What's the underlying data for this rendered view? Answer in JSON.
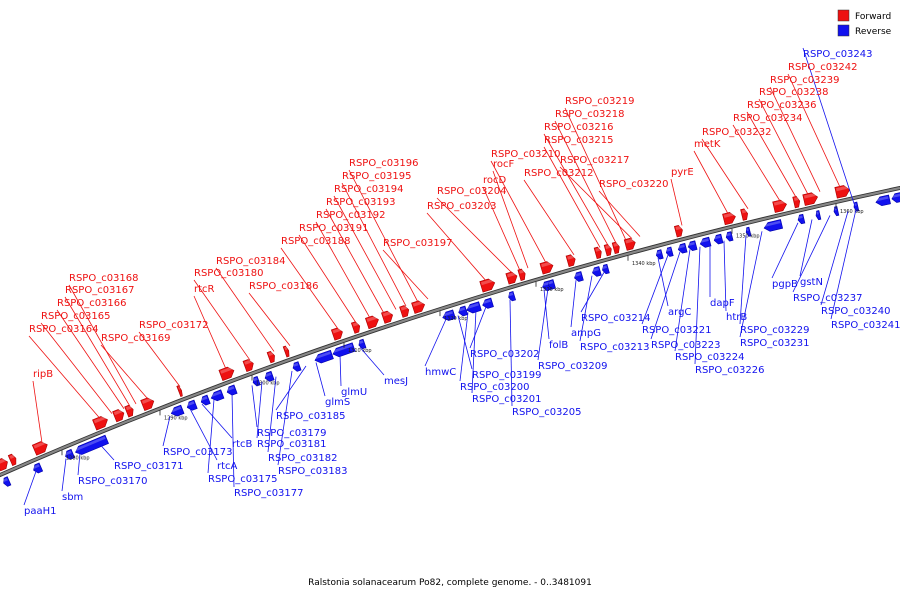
{
  "caption": "Ralstonia solanacearum Po82, complete genome. - 0..3481091",
  "legend": [
    {
      "label": "Forward",
      "color": "#ee1111"
    },
    {
      "label": "Reverse",
      "color": "#1111ee"
    }
  ],
  "colors": {
    "forward": "#ee1111",
    "reverse": "#1111ee",
    "backbone": "#888888"
  },
  "ticks": [
    "1280 kbp",
    "1290 kbp",
    "1300 kbp",
    "1310 kbp",
    "1320 kbp",
    "1330 kbp",
    "1340 kbp",
    "1350 kbp",
    "1360 kbp"
  ],
  "forward_labels": [
    "ripB",
    "RSPO_c03164",
    "RSPO_c03165",
    "RSPO_c03166",
    "RSPO_c03167",
    "RSPO_c03168",
    "RSPO_c03169",
    "RSPO_c03172",
    "rtcR",
    "RSPO_c03180",
    "RSPO_c03184",
    "RSPO_c03186",
    "RSPO_c03188",
    "RSPO_c03191",
    "RSPO_c03192",
    "RSPO_c03193",
    "RSPO_c03194",
    "RSPO_c03195",
    "RSPO_c03196",
    "RSPO_c03197",
    "RSPO_c03203",
    "RSPO_c03204",
    "rocD",
    "rocF",
    "RSPO_c03210",
    "RSPO_c03212",
    "RSPO_c03215",
    "RSPO_c03216",
    "RSPO_c03218",
    "RSPO_c03219",
    "RSPO_c03217",
    "RSPO_c03220",
    "pyrE",
    "metK",
    "RSPO_c03232",
    "RSPO_c03234",
    "RSPO_c03236",
    "RSPO_c03238",
    "RSPO_c03239",
    "RSPO_c03242"
  ],
  "reverse_labels": [
    "paaH1",
    "sbm",
    "RSPO_c03170",
    "RSPO_c03171",
    "RSPO_c03173",
    "rtcA",
    "rtcB",
    "RSPO_c03175",
    "RSPO_c03177",
    "RSPO_c03179",
    "RSPO_c03181",
    "RSPO_c03182",
    "RSPO_c03183",
    "RSPO_c03185",
    "glmS",
    "glmU",
    "mesJ",
    "hmwC",
    "RSPO_c03199",
    "RSPO_c03200",
    "RSPO_c03201",
    "RSPO_c03202",
    "RSPO_c03205",
    "folB",
    "RSPO_c03209",
    "ampG",
    "RSPO_c03213",
    "RSPO_c03214",
    "argC",
    "RSPO_c03221",
    "RSPO_c03223",
    "RSPO_c03224",
    "RSPO_c03226",
    "dapF",
    "htrB",
    "RSPO_c03229",
    "RSPO_c03231",
    "pgpB",
    "gstN",
    "RSPO_c03237",
    "RSPO_c03240",
    "RSPO_c03241",
    "RSPO_c03243"
  ]
}
